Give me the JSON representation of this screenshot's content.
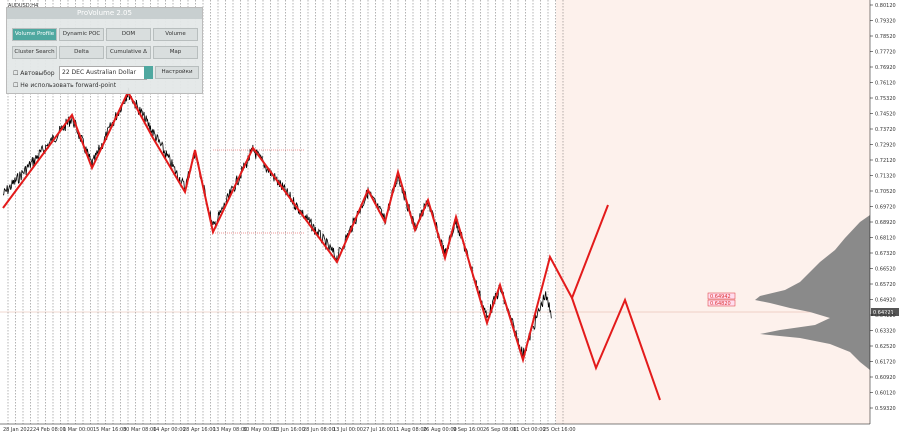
{
  "symbol": "AUDUSD,H4",
  "panel": {
    "title": "ProVolume 2.05",
    "buttons": [
      "Volume Profile",
      "Dynamic POC",
      "DOM",
      "Volume",
      "Cluster Search",
      "Delta",
      "Cumulative Δ",
      "Map"
    ],
    "auto_select": "Автовыбор",
    "instrument": "22 DEC Australian Dollar",
    "settings": "Настройки",
    "forward_point": "Не использовать forward-point"
  },
  "price_axis": [
    "0.80120",
    "0.79320",
    "0.78520",
    "0.77720",
    "0.76920",
    "0.76120",
    "0.75320",
    "0.74520",
    "0.73720",
    "0.72920",
    "0.72120",
    "0.71320",
    "0.70520",
    "0.69720",
    "0.68920",
    "0.68120",
    "0.67320",
    "0.66520",
    "0.65720",
    "0.64920",
    "0.64120",
    "0.63320",
    "0.62520",
    "0.61720",
    "0.60920",
    "0.60120",
    "0.59320"
  ],
  "current_price": "0.64221",
  "level_labels": [
    "0.64942",
    "0.64820"
  ],
  "time_axis": [
    "28 Jan 2022",
    "24 Feb 08:00",
    "1 Mar 00:00",
    "15 Mar 16:00",
    "30 Mar 08:00",
    "14 Apr 00:00",
    "28 Apr 16:00",
    "13 May 08:00",
    "30 May 00:00",
    "13 Jun 16:00",
    "28 Jun 08:00",
    "13 Jul 00:00",
    "27 Jul 16:00",
    "11 Aug 08:00",
    "26 Aug 00:00",
    "9 Sep 16:00",
    "26 Sep 08:00",
    "11 Oct 00:00",
    "25 Oct 16:00"
  ]
}
